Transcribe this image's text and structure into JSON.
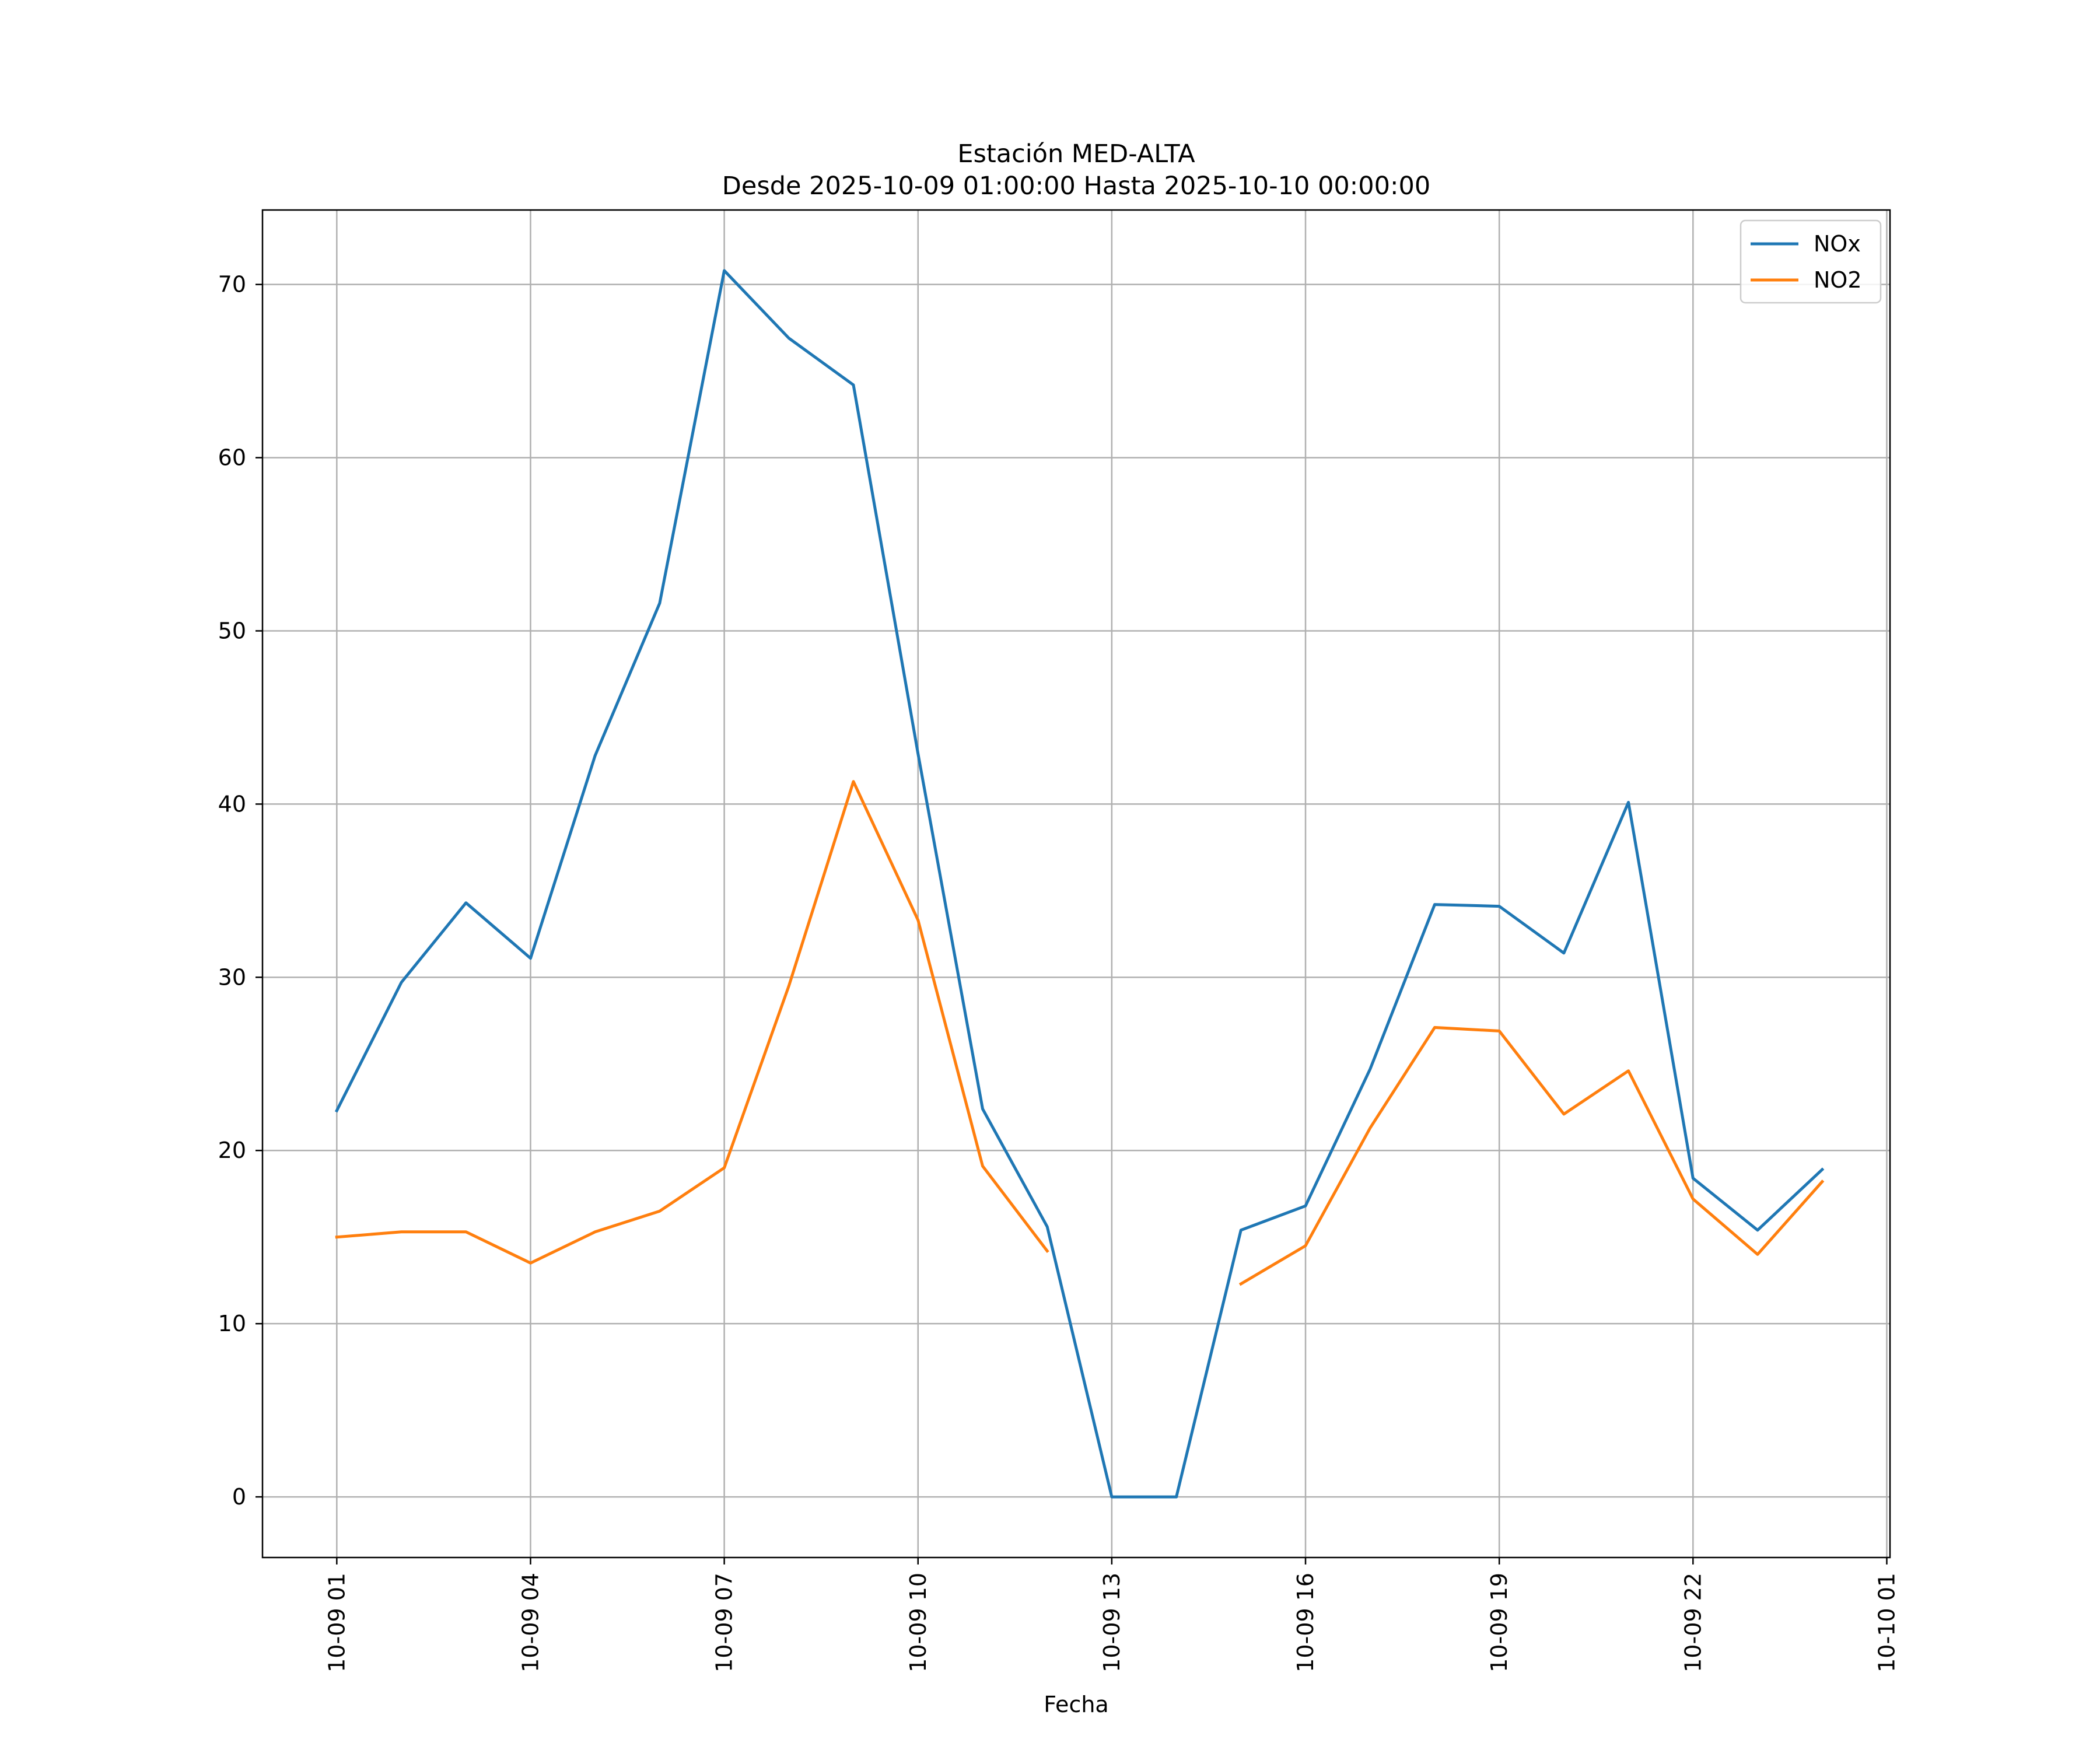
{
  "chart_data": {
    "type": "line",
    "title": "Estación MED-ALTA",
    "subtitle": "Desde 2025-10-09 01:00:00 Hasta 2025-10-10 00:00:00",
    "xlabel": "Fecha",
    "ylabel": "",
    "x_hours": [
      1,
      2,
      3,
      4,
      5,
      6,
      7,
      8,
      9,
      10,
      11,
      12,
      13,
      14,
      15,
      16,
      17,
      18,
      19,
      20,
      21,
      22,
      23,
      24
    ],
    "xlim": [
      -0.15,
      25.05
    ],
    "ylim": [
      -3.5,
      74.3
    ],
    "x_ticks": [
      {
        "value": 1,
        "label": "10-09 01"
      },
      {
        "value": 4,
        "label": "10-09 04"
      },
      {
        "value": 7,
        "label": "10-09 07"
      },
      {
        "value": 10,
        "label": "10-09 10"
      },
      {
        "value": 13,
        "label": "10-09 13"
      },
      {
        "value": 16,
        "label": "10-09 16"
      },
      {
        "value": 19,
        "label": "10-09 19"
      },
      {
        "value": 22,
        "label": "10-09 22"
      },
      {
        "value": 25,
        "label": "10-10 01"
      }
    ],
    "y_ticks": [
      {
        "value": 0,
        "label": "0"
      },
      {
        "value": 10,
        "label": "10"
      },
      {
        "value": 20,
        "label": "20"
      },
      {
        "value": 30,
        "label": "30"
      },
      {
        "value": 40,
        "label": "40"
      },
      {
        "value": 50,
        "label": "50"
      },
      {
        "value": 60,
        "label": "60"
      },
      {
        "value": 70,
        "label": "70"
      }
    ],
    "grid": true,
    "legend_position": "top-right",
    "series": [
      {
        "name": "NOx",
        "color": "#1f77b4",
        "values": [
          22.3,
          29.7,
          34.3,
          31.1,
          42.8,
          51.6,
          70.8,
          66.9,
          64.2,
          42.9,
          22.4,
          15.6,
          0.0,
          0.0,
          15.4,
          16.8,
          24.7,
          34.2,
          34.1,
          31.4,
          40.1,
          18.4,
          15.4,
          18.9
        ]
      },
      {
        "name": "NO2",
        "color": "#ff7f0e",
        "values": [
          15.0,
          15.3,
          15.3,
          13.5,
          15.3,
          16.5,
          19.0,
          29.5,
          41.3,
          33.3,
          19.1,
          14.2,
          null,
          null,
          12.3,
          14.5,
          21.3,
          27.1,
          26.9,
          22.1,
          24.6,
          17.2,
          14.0,
          18.2
        ]
      }
    ]
  }
}
